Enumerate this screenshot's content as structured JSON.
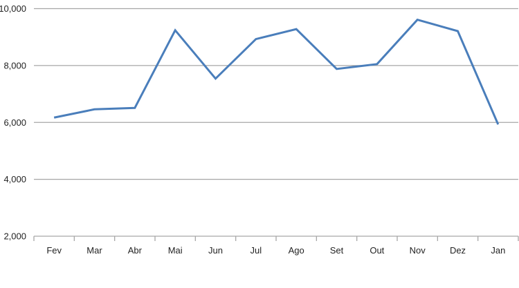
{
  "chart_data": {
    "type": "line",
    "title": "",
    "xlabel": "",
    "ylabel": "",
    "categories": [
      "Fev",
      "Mar",
      "Abr",
      "Mai",
      "Jun",
      "Jul",
      "Ago",
      "Set",
      "Out",
      "Nov",
      "Dez",
      "Jan"
    ],
    "series": [
      {
        "values": [
          6170,
          6460,
          6510,
          9240,
          7540,
          8930,
          9280,
          7880,
          8050,
          9610,
          9210,
          5930
        ],
        "color": "#4a7ebb"
      }
    ],
    "ylim": [
      2000,
      10000
    ],
    "yticks": [
      2000,
      4000,
      6000,
      8000,
      10000
    ],
    "ytick_labels": [
      "2,000",
      "4,000",
      "6,000",
      "8,000",
      "10,000"
    ],
    "grid": true,
    "legend": "none",
    "gridline_color": "#a6a6a6"
  }
}
